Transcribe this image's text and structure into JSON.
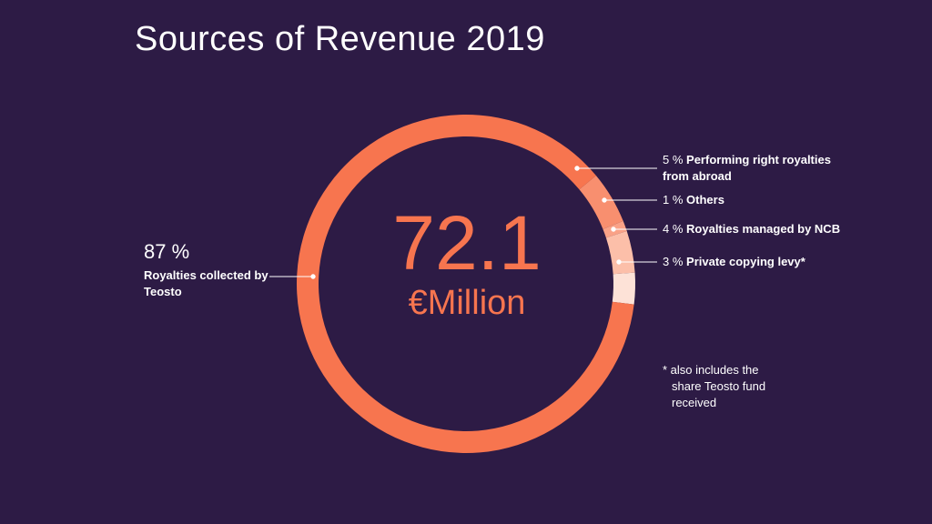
{
  "colors": {
    "background": "#2d1b45",
    "main": "#f7754f",
    "abroad": "#f88f6f",
    "others": "#faa287",
    "ncb": "#fcbfa9",
    "levy": "#fde2d7",
    "text": "#ffffff"
  },
  "title": "Sources of Revenue 2019",
  "center": {
    "value": "72.1",
    "unit": "€Million"
  },
  "labels": {
    "main": {
      "pct": "87 %",
      "name": "Royalties collected by Teosto"
    },
    "abroad": {
      "pct": "5 %",
      "name_line1": "Performing right royalties",
      "name_line2": "from abroad"
    },
    "others": {
      "pct": "1 %",
      "name": "Others"
    },
    "ncb": {
      "pct": "4 %",
      "name": "Royalties managed by NCB"
    },
    "levy": {
      "pct": "3 %",
      "name": "Private copying levy*"
    }
  },
  "footnote": {
    "line1": "* also includes the",
    "line2": "share Teosto fund",
    "line3": "received"
  },
  "chart_data": {
    "type": "pie",
    "style": "donut",
    "title": "Sources of Revenue 2019",
    "total": "72.1 €Million",
    "slices": [
      {
        "label": "Private copying levy*",
        "value": 3,
        "color": "#fde2d7"
      },
      {
        "label": "Royalties managed by NCB",
        "value": 4,
        "color": "#fcbfa9"
      },
      {
        "label": "Others",
        "value": 1,
        "color": "#faa287"
      },
      {
        "label": "Performing right royalties from abroad",
        "value": 5,
        "color": "#f88f6f"
      },
      {
        "label": "Royalties collected by Teosto",
        "value": 87,
        "color": "#f7754f"
      }
    ]
  }
}
